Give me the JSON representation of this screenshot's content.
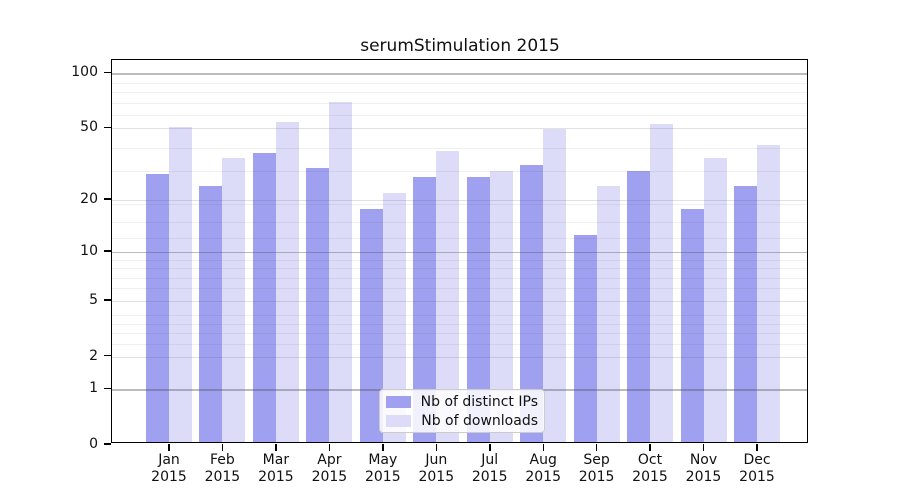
{
  "title": "serumStimulation 2015",
  "chart_data": {
    "type": "bar",
    "title": "serumStimulation 2015",
    "categories": [
      "Jan",
      "Feb",
      "Mar",
      "Apr",
      "May",
      "Jun",
      "Jul",
      "Aug",
      "Sep",
      "Oct",
      "Nov",
      "Dec"
    ],
    "x_tick_year": "2015",
    "series": [
      {
        "name": "Nb of distinct IPs",
        "color": "#a0a0f0",
        "values": [
          27,
          23,
          35,
          29,
          17,
          26,
          26,
          30,
          12,
          28,
          17,
          23
        ]
      },
      {
        "name": "Nb of downloads",
        "color": "#dcdcf9",
        "values": [
          49,
          33,
          52,
          67,
          21,
          36,
          28,
          48,
          23,
          51,
          33,
          39
        ]
      }
    ],
    "y_ticks": [
      0,
      1,
      2,
      5,
      10,
      20,
      50,
      100
    ],
    "y_tick_labels": [
      "0",
      "1",
      "2",
      "5",
      "10",
      "20",
      "50",
      "100"
    ],
    "y_scale": "log10(1+value)",
    "ylim": [
      0,
      118
    ],
    "y_minor_gridlines": [
      2.5,
      3,
      3.5,
      4,
      6,
      7,
      8,
      9,
      12,
      15,
      19,
      29,
      39,
      59,
      69,
      79,
      89
    ],
    "grid": true,
    "legend_position": "lower center"
  },
  "colors": {
    "distinct_ips_bar": "#a0a0f0",
    "downloads_bar": "#dcdcf9",
    "background": "#ffffff",
    "axis_frame": "#000000",
    "grid_strong": "#bcbcc0",
    "grid_medium": "#e3e3e5",
    "grid_minor": "#efeff1"
  }
}
